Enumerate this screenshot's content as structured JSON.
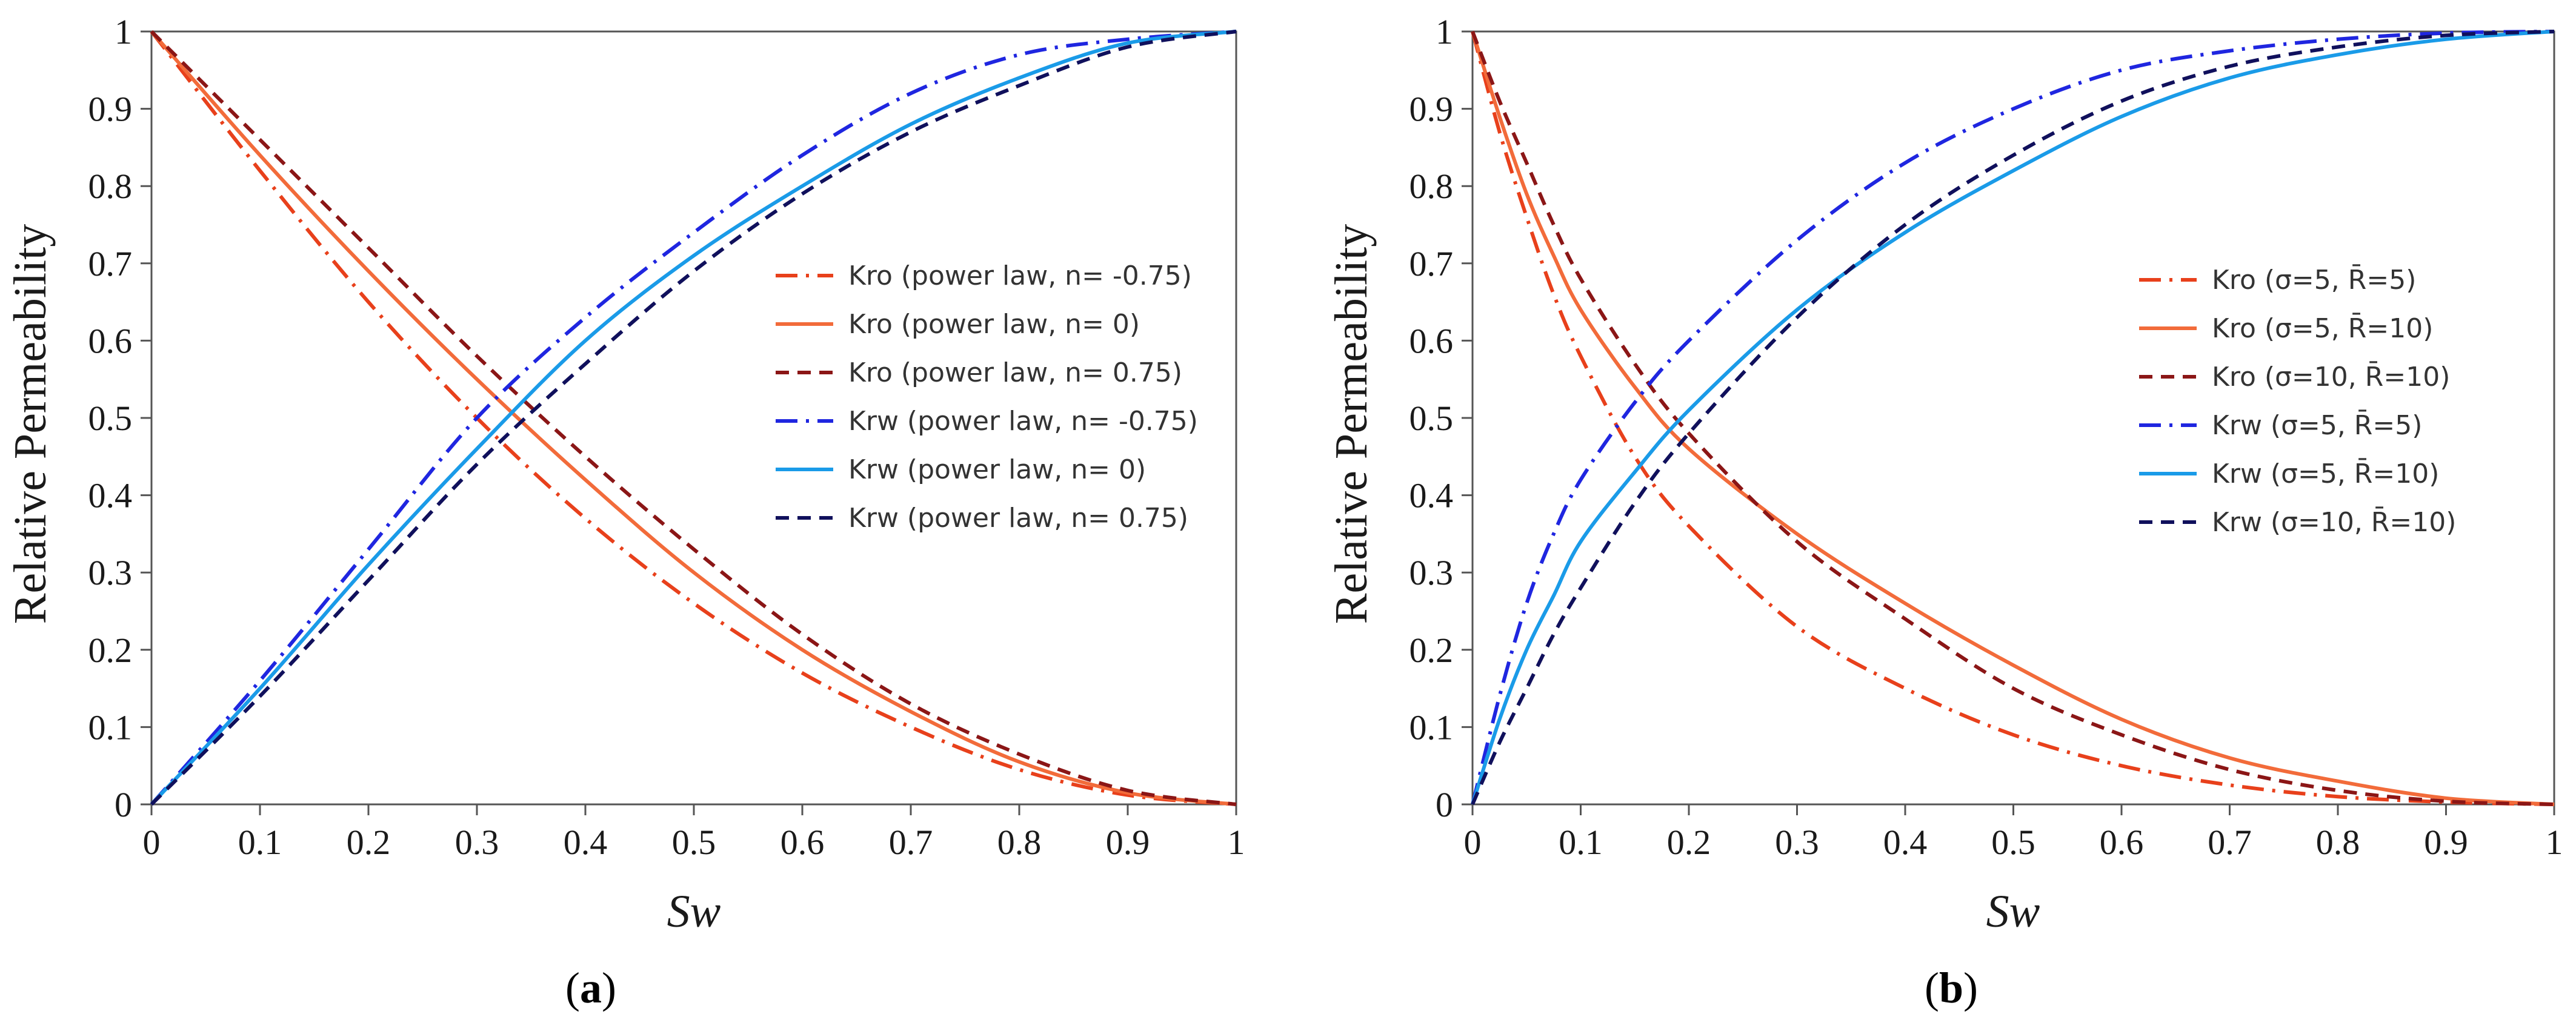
{
  "colors": {
    "kro_red": "#e8401b",
    "kro_orange": "#f26b3a",
    "kro_darkred": "#8b1616",
    "krw_blue": "#1f26e0",
    "krw_lightblue": "#1a9be8",
    "krw_navy": "#10105c",
    "axis": "#555555"
  },
  "chart_data": [
    {
      "type": "line",
      "panel": "a",
      "caption": {
        "open": "(",
        "letter": "a",
        "close": ")"
      },
      "xlabel": "Sw",
      "ylabel": "Relative Permeability",
      "xlim": [
        0,
        1
      ],
      "ylim": [
        0,
        1
      ],
      "x_ticks": [
        "0",
        "0.1",
        "0.2",
        "0.3",
        "0.4",
        "0.5",
        "0.6",
        "0.7",
        "0.8",
        "0.9",
        "1"
      ],
      "y_ticks": [
        "0",
        "0.1",
        "0.2",
        "0.3",
        "0.4",
        "0.5",
        "0.6",
        "0.7",
        "0.8",
        "0.9",
        "1"
      ],
      "legend_position": "right-middle",
      "x": [
        0,
        0.1,
        0.2,
        0.3,
        0.4,
        0.5,
        0.6,
        0.7,
        0.8,
        0.9,
        1
      ],
      "series": [
        {
          "name": "Kro (power law, n= -0.75)",
          "color_key": "kro_red",
          "dash": "dashdot",
          "values": [
            1,
            0.82,
            0.65,
            0.5,
            0.37,
            0.26,
            0.17,
            0.1,
            0.045,
            0.012,
            0
          ]
        },
        {
          "name": "Kro (power law, n= 0)",
          "color_key": "kro_orange",
          "dash": "solid",
          "values": [
            1,
            0.84,
            0.69,
            0.55,
            0.42,
            0.3,
            0.2,
            0.12,
            0.055,
            0.015,
            0
          ]
        },
        {
          "name": "Kro (power law, n= 0.75)",
          "color_key": "kro_darkred",
          "dash": "dash",
          "values": [
            1,
            0.86,
            0.72,
            0.58,
            0.45,
            0.33,
            0.22,
            0.13,
            0.065,
            0.018,
            0
          ]
        },
        {
          "name": "Krw (power law, n= -0.75)",
          "color_key": "krw_blue",
          "dash": "dashdot",
          "values": [
            0,
            0.16,
            0.33,
            0.5,
            0.63,
            0.74,
            0.84,
            0.92,
            0.97,
            0.99,
            1
          ]
        },
        {
          "name": "Krw (power law, n= 0)",
          "color_key": "krw_lightblue",
          "dash": "solid",
          "values": [
            0,
            0.15,
            0.31,
            0.46,
            0.6,
            0.71,
            0.8,
            0.88,
            0.94,
            0.985,
            1
          ]
        },
        {
          "name": "Krw (power law, n= 0.75)",
          "color_key": "krw_navy",
          "dash": "dash",
          "values": [
            0,
            0.14,
            0.29,
            0.44,
            0.57,
            0.69,
            0.79,
            0.87,
            0.93,
            0.98,
            1
          ]
        }
      ]
    },
    {
      "type": "line",
      "panel": "b",
      "caption": {
        "open": "(",
        "letter": "b",
        "close": ")"
      },
      "xlabel": "Sw",
      "ylabel": "Relative Permeability",
      "xlim": [
        0,
        1
      ],
      "ylim": [
        0,
        1
      ],
      "x_ticks": [
        "0",
        "0.1",
        "0.2",
        "0.3",
        "0.4",
        "0.5",
        "0.6",
        "0.7",
        "0.8",
        "0.9",
        "1"
      ],
      "y_ticks": [
        "0",
        "0.1",
        "0.2",
        "0.3",
        "0.4",
        "0.5",
        "0.6",
        "0.7",
        "0.8",
        "0.9",
        "1"
      ],
      "legend_position": "right-middle",
      "x": [
        0,
        0.025,
        0.05,
        0.075,
        0.1,
        0.15,
        0.2,
        0.3,
        0.4,
        0.5,
        0.6,
        0.7,
        0.8,
        0.9,
        1
      ],
      "series": [
        {
          "name": "Kro (σ=5, R̄=5)",
          "color_key": "kro_red",
          "dash": "dashdot",
          "values": [
            1,
            0.87,
            0.76,
            0.66,
            0.58,
            0.45,
            0.36,
            0.23,
            0.15,
            0.09,
            0.05,
            0.025,
            0.01,
            0.003,
            0
          ]
        },
        {
          "name": "Kro (σ=5, R̄=10)",
          "color_key": "kro_orange",
          "dash": "solid",
          "values": [
            1,
            0.89,
            0.79,
            0.71,
            0.64,
            0.54,
            0.46,
            0.35,
            0.26,
            0.18,
            0.11,
            0.06,
            0.03,
            0.008,
            0
          ]
        },
        {
          "name": "Kro (σ=10, R̄=10)",
          "color_key": "kro_darkred",
          "dash": "dash",
          "values": [
            1,
            0.91,
            0.83,
            0.75,
            0.68,
            0.57,
            0.48,
            0.34,
            0.24,
            0.15,
            0.09,
            0.045,
            0.018,
            0.004,
            0
          ]
        },
        {
          "name": "Krw (σ=5, R̄=5)",
          "color_key": "krw_blue",
          "dash": "dashdot",
          "values": [
            0,
            0.14,
            0.26,
            0.35,
            0.42,
            0.52,
            0.6,
            0.73,
            0.83,
            0.9,
            0.95,
            0.975,
            0.99,
            0.998,
            1
          ]
        },
        {
          "name": "Krw (σ=5, R̄=10)",
          "color_key": "krw_lightblue",
          "dash": "solid",
          "values": [
            0,
            0.11,
            0.2,
            0.27,
            0.34,
            0.43,
            0.51,
            0.64,
            0.74,
            0.82,
            0.89,
            0.94,
            0.97,
            0.99,
            1
          ]
        },
        {
          "name": "Krw (σ=10, R̄=10)",
          "color_key": "krw_navy",
          "dash": "dash",
          "values": [
            0,
            0.08,
            0.15,
            0.22,
            0.28,
            0.39,
            0.48,
            0.63,
            0.75,
            0.84,
            0.91,
            0.955,
            0.98,
            0.995,
            1
          ]
        }
      ]
    }
  ]
}
